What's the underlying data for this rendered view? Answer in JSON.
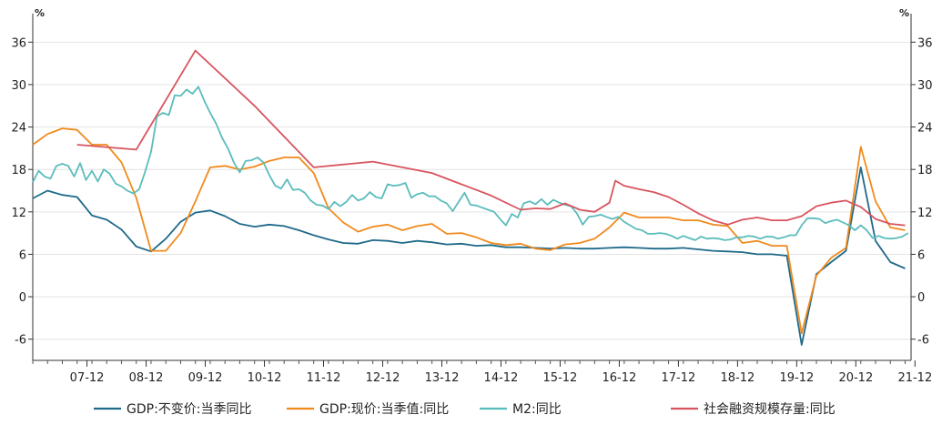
{
  "chart_data": {
    "type": "line",
    "y_unit_left": "%",
    "y_unit_right": "%",
    "ylim": [
      -9,
      39
    ],
    "y_ticks": [
      -6,
      0,
      6,
      12,
      18,
      24,
      30,
      36
    ],
    "x_range": [
      2007.0,
      2021.85
    ],
    "x_tick_labels": [
      "07-12",
      "08-12",
      "09-12",
      "10-12",
      "11-12",
      "12-12",
      "13-12",
      "14-12",
      "15-12",
      "16-12",
      "17-12",
      "18-12",
      "19-12",
      "20-12",
      "21-12"
    ],
    "grid": true,
    "legend_position": "bottom",
    "series": [
      {
        "name": "GDP:不变价:当季同比",
        "color": "#1f6a8a",
        "points": [
          [
            2007.0,
            13.9
          ],
          [
            2007.25,
            15.0
          ],
          [
            2007.5,
            14.4
          ],
          [
            2007.75,
            14.1
          ],
          [
            2008.0,
            11.5
          ],
          [
            2008.25,
            10.9
          ],
          [
            2008.5,
            9.5
          ],
          [
            2008.75,
            7.1
          ],
          [
            2009.0,
            6.4
          ],
          [
            2009.25,
            8.2
          ],
          [
            2009.5,
            10.6
          ],
          [
            2009.75,
            11.9
          ],
          [
            2010.0,
            12.2
          ],
          [
            2010.25,
            11.4
          ],
          [
            2010.5,
            10.3
          ],
          [
            2010.75,
            9.9
          ],
          [
            2011.0,
            10.2
          ],
          [
            2011.25,
            10.0
          ],
          [
            2011.5,
            9.4
          ],
          [
            2011.75,
            8.7
          ],
          [
            2012.0,
            8.1
          ],
          [
            2012.25,
            7.6
          ],
          [
            2012.5,
            7.5
          ],
          [
            2012.75,
            8.0
          ],
          [
            2013.0,
            7.9
          ],
          [
            2013.25,
            7.6
          ],
          [
            2013.5,
            7.9
          ],
          [
            2013.75,
            7.7
          ],
          [
            2014.0,
            7.4
          ],
          [
            2014.25,
            7.5
          ],
          [
            2014.5,
            7.2
          ],
          [
            2014.75,
            7.3
          ],
          [
            2015.0,
            7.0
          ],
          [
            2015.25,
            7.0
          ],
          [
            2015.5,
            6.9
          ],
          [
            2015.75,
            6.8
          ],
          [
            2016.0,
            6.9
          ],
          [
            2016.25,
            6.8
          ],
          [
            2016.5,
            6.8
          ],
          [
            2016.75,
            6.9
          ],
          [
            2017.0,
            7.0
          ],
          [
            2017.25,
            6.9
          ],
          [
            2017.5,
            6.8
          ],
          [
            2017.75,
            6.8
          ],
          [
            2018.0,
            6.9
          ],
          [
            2018.25,
            6.7
          ],
          [
            2018.5,
            6.5
          ],
          [
            2018.75,
            6.4
          ],
          [
            2019.0,
            6.3
          ],
          [
            2019.25,
            6.0
          ],
          [
            2019.5,
            6.0
          ],
          [
            2019.75,
            5.8
          ],
          [
            2020.0,
            -6.8
          ],
          [
            2020.25,
            3.2
          ],
          [
            2020.5,
            4.9
          ],
          [
            2020.75,
            6.5
          ],
          [
            2021.0,
            18.3
          ],
          [
            2021.25,
            7.9
          ],
          [
            2021.5,
            4.9
          ],
          [
            2021.75,
            4.0
          ]
        ]
      },
      {
        "name": "GDP:现价:当季值:同比",
        "color": "#f08a1c",
        "points": [
          [
            2007.0,
            21.5
          ],
          [
            2007.25,
            23.0
          ],
          [
            2007.5,
            23.8
          ],
          [
            2007.75,
            23.6
          ],
          [
            2008.0,
            21.5
          ],
          [
            2008.25,
            21.5
          ],
          [
            2008.5,
            19.0
          ],
          [
            2008.75,
            14.0
          ],
          [
            2009.0,
            6.5
          ],
          [
            2009.25,
            6.5
          ],
          [
            2009.5,
            9.0
          ],
          [
            2009.75,
            13.5
          ],
          [
            2010.0,
            18.3
          ],
          [
            2010.25,
            18.5
          ],
          [
            2010.5,
            18.0
          ],
          [
            2010.75,
            18.4
          ],
          [
            2011.0,
            19.2
          ],
          [
            2011.25,
            19.7
          ],
          [
            2011.5,
            19.7
          ],
          [
            2011.75,
            17.5
          ],
          [
            2012.0,
            12.5
          ],
          [
            2012.25,
            10.5
          ],
          [
            2012.5,
            9.2
          ],
          [
            2012.75,
            9.9
          ],
          [
            2013.0,
            10.2
          ],
          [
            2013.25,
            9.4
          ],
          [
            2013.5,
            10.0
          ],
          [
            2013.75,
            10.3
          ],
          [
            2014.0,
            8.9
          ],
          [
            2014.25,
            9.0
          ],
          [
            2014.5,
            8.4
          ],
          [
            2014.75,
            7.6
          ],
          [
            2015.0,
            7.3
          ],
          [
            2015.25,
            7.5
          ],
          [
            2015.5,
            6.8
          ],
          [
            2015.75,
            6.6
          ],
          [
            2016.0,
            7.4
          ],
          [
            2016.25,
            7.6
          ],
          [
            2016.5,
            8.2
          ],
          [
            2016.75,
            9.8
          ],
          [
            2017.0,
            11.9
          ],
          [
            2017.25,
            11.2
          ],
          [
            2017.5,
            11.2
          ],
          [
            2017.75,
            11.2
          ],
          [
            2018.0,
            10.8
          ],
          [
            2018.25,
            10.8
          ],
          [
            2018.5,
            10.2
          ],
          [
            2018.75,
            10.0
          ],
          [
            2019.0,
            7.6
          ],
          [
            2019.25,
            7.9
          ],
          [
            2019.5,
            7.2
          ],
          [
            2019.75,
            7.2
          ],
          [
            2020.0,
            -5.2
          ],
          [
            2020.25,
            3.0
          ],
          [
            2020.5,
            5.5
          ],
          [
            2020.75,
            6.9
          ],
          [
            2021.0,
            21.2
          ],
          [
            2021.25,
            13.5
          ],
          [
            2021.5,
            9.8
          ],
          [
            2021.75,
            9.4
          ]
        ]
      },
      {
        "name": "M2:同比",
        "color": "#5bbcbc",
        "points": [
          [
            2007.0,
            16.2
          ],
          [
            2007.1,
            17.8
          ],
          [
            2007.2,
            17.0
          ],
          [
            2007.3,
            16.7
          ],
          [
            2007.4,
            18.5
          ],
          [
            2007.5,
            18.8
          ],
          [
            2007.6,
            18.5
          ],
          [
            2007.7,
            17.0
          ],
          [
            2007.8,
            18.9
          ],
          [
            2007.9,
            16.5
          ],
          [
            2008.0,
            17.8
          ],
          [
            2008.1,
            16.3
          ],
          [
            2008.2,
            18.0
          ],
          [
            2008.3,
            17.4
          ],
          [
            2008.4,
            16.0
          ],
          [
            2008.5,
            15.6
          ],
          [
            2008.6,
            15.0
          ],
          [
            2008.7,
            14.6
          ],
          [
            2008.8,
            15.2
          ],
          [
            2008.9,
            17.7
          ],
          [
            2009.0,
            20.5
          ],
          [
            2009.1,
            25.5
          ],
          [
            2009.2,
            26.0
          ],
          [
            2009.3,
            25.7
          ],
          [
            2009.4,
            28.5
          ],
          [
            2009.5,
            28.4
          ],
          [
            2009.6,
            29.3
          ],
          [
            2009.7,
            28.7
          ],
          [
            2009.8,
            29.7
          ],
          [
            2009.9,
            27.7
          ],
          [
            2010.0,
            26.0
          ],
          [
            2010.1,
            24.5
          ],
          [
            2010.2,
            22.5
          ],
          [
            2010.3,
            21.0
          ],
          [
            2010.4,
            19.0
          ],
          [
            2010.5,
            17.6
          ],
          [
            2010.6,
            19.2
          ],
          [
            2010.7,
            19.3
          ],
          [
            2010.8,
            19.7
          ],
          [
            2010.9,
            19.0
          ],
          [
            2011.0,
            17.2
          ],
          [
            2011.1,
            15.7
          ],
          [
            2011.2,
            15.3
          ],
          [
            2011.3,
            16.6
          ],
          [
            2011.4,
            15.1
          ],
          [
            2011.5,
            15.2
          ],
          [
            2011.6,
            14.7
          ],
          [
            2011.7,
            13.6
          ],
          [
            2011.8,
            13.0
          ],
          [
            2011.9,
            12.9
          ],
          [
            2012.0,
            12.4
          ],
          [
            2012.1,
            13.4
          ],
          [
            2012.2,
            12.8
          ],
          [
            2012.3,
            13.4
          ],
          [
            2012.4,
            14.4
          ],
          [
            2012.5,
            13.6
          ],
          [
            2012.6,
            13.9
          ],
          [
            2012.7,
            14.8
          ],
          [
            2012.8,
            14.1
          ],
          [
            2012.9,
            13.9
          ],
          [
            2013.0,
            15.9
          ],
          [
            2013.1,
            15.7
          ],
          [
            2013.2,
            15.8
          ],
          [
            2013.3,
            16.1
          ],
          [
            2013.4,
            14.0
          ],
          [
            2013.5,
            14.5
          ],
          [
            2013.6,
            14.7
          ],
          [
            2013.7,
            14.2
          ],
          [
            2013.8,
            14.2
          ],
          [
            2013.9,
            13.6
          ],
          [
            2014.0,
            13.2
          ],
          [
            2014.1,
            12.1
          ],
          [
            2014.2,
            13.4
          ],
          [
            2014.3,
            14.7
          ],
          [
            2014.4,
            13.0
          ],
          [
            2014.5,
            12.9
          ],
          [
            2014.6,
            12.6
          ],
          [
            2014.7,
            12.3
          ],
          [
            2014.8,
            12.0
          ],
          [
            2014.9,
            11.0
          ],
          [
            2015.0,
            10.1
          ],
          [
            2015.1,
            11.7
          ],
          [
            2015.2,
            11.2
          ],
          [
            2015.3,
            13.2
          ],
          [
            2015.4,
            13.5
          ],
          [
            2015.5,
            13.1
          ],
          [
            2015.6,
            13.8
          ],
          [
            2015.7,
            13.0
          ],
          [
            2015.8,
            13.7
          ],
          [
            2015.9,
            13.3
          ],
          [
            2016.0,
            13.0
          ],
          [
            2016.1,
            12.8
          ],
          [
            2016.2,
            11.8
          ],
          [
            2016.3,
            10.2
          ],
          [
            2016.4,
            11.3
          ],
          [
            2016.5,
            11.4
          ],
          [
            2016.6,
            11.6
          ],
          [
            2016.7,
            11.3
          ],
          [
            2016.8,
            11.0
          ],
          [
            2016.9,
            11.3
          ],
          [
            2017.0,
            10.6
          ],
          [
            2017.1,
            10.1
          ],
          [
            2017.2,
            9.6
          ],
          [
            2017.3,
            9.4
          ],
          [
            2017.4,
            8.9
          ],
          [
            2017.5,
            8.9
          ],
          [
            2017.6,
            9.0
          ],
          [
            2017.7,
            8.9
          ],
          [
            2017.8,
            8.6
          ],
          [
            2017.9,
            8.2
          ],
          [
            2018.0,
            8.6
          ],
          [
            2018.1,
            8.3
          ],
          [
            2018.2,
            8.0
          ],
          [
            2018.3,
            8.5
          ],
          [
            2018.4,
            8.2
          ],
          [
            2018.5,
            8.3
          ],
          [
            2018.6,
            8.2
          ],
          [
            2018.7,
            8.0
          ],
          [
            2018.8,
            8.1
          ],
          [
            2018.9,
            8.4
          ],
          [
            2019.0,
            8.4
          ],
          [
            2019.1,
            8.6
          ],
          [
            2019.2,
            8.5
          ],
          [
            2019.3,
            8.2
          ],
          [
            2019.4,
            8.5
          ],
          [
            2019.5,
            8.5
          ],
          [
            2019.6,
            8.2
          ],
          [
            2019.7,
            8.4
          ],
          [
            2019.8,
            8.7
          ],
          [
            2019.9,
            8.7
          ],
          [
            2020.0,
            10.1
          ],
          [
            2020.1,
            11.1
          ],
          [
            2020.2,
            11.1
          ],
          [
            2020.3,
            11.0
          ],
          [
            2020.4,
            10.4
          ],
          [
            2020.5,
            10.7
          ],
          [
            2020.6,
            10.9
          ],
          [
            2020.7,
            10.5
          ],
          [
            2020.8,
            10.1
          ],
          [
            2020.9,
            9.4
          ],
          [
            2021.0,
            10.1
          ],
          [
            2021.1,
            9.4
          ],
          [
            2021.2,
            8.3
          ],
          [
            2021.3,
            8.6
          ],
          [
            2021.4,
            8.3
          ],
          [
            2021.5,
            8.2
          ],
          [
            2021.6,
            8.3
          ],
          [
            2021.7,
            8.5
          ],
          [
            2021.8,
            9.0
          ]
        ]
      },
      {
        "name": "社会融资规模存量:同比",
        "color": "#d8545f",
        "points": [
          [
            2007.75,
            21.5
          ],
          [
            2008.75,
            20.8
          ],
          [
            2009.75,
            34.8
          ],
          [
            2010.75,
            27.0
          ],
          [
            2011.75,
            18.3
          ],
          [
            2012.75,
            19.1
          ],
          [
            2013.75,
            17.5
          ],
          [
            2014.75,
            14.3
          ],
          [
            2015.25,
            12.3
          ],
          [
            2015.5,
            12.5
          ],
          [
            2015.75,
            12.4
          ],
          [
            2016.0,
            13.2
          ],
          [
            2016.25,
            12.3
          ],
          [
            2016.5,
            12.0
          ],
          [
            2016.75,
            13.3
          ],
          [
            2016.85,
            16.4
          ],
          [
            2017.0,
            15.7
          ],
          [
            2017.25,
            15.2
          ],
          [
            2017.5,
            14.8
          ],
          [
            2017.75,
            14.1
          ],
          [
            2018.0,
            13.0
          ],
          [
            2018.25,
            11.8
          ],
          [
            2018.5,
            10.8
          ],
          [
            2018.75,
            10.2
          ],
          [
            2019.0,
            10.9
          ],
          [
            2019.25,
            11.2
          ],
          [
            2019.5,
            10.8
          ],
          [
            2019.75,
            10.8
          ],
          [
            2020.0,
            11.4
          ],
          [
            2020.25,
            12.8
          ],
          [
            2020.5,
            13.3
          ],
          [
            2020.75,
            13.6
          ],
          [
            2021.0,
            12.7
          ],
          [
            2021.25,
            11.0
          ],
          [
            2021.5,
            10.3
          ],
          [
            2021.75,
            10.1
          ]
        ]
      }
    ]
  }
}
